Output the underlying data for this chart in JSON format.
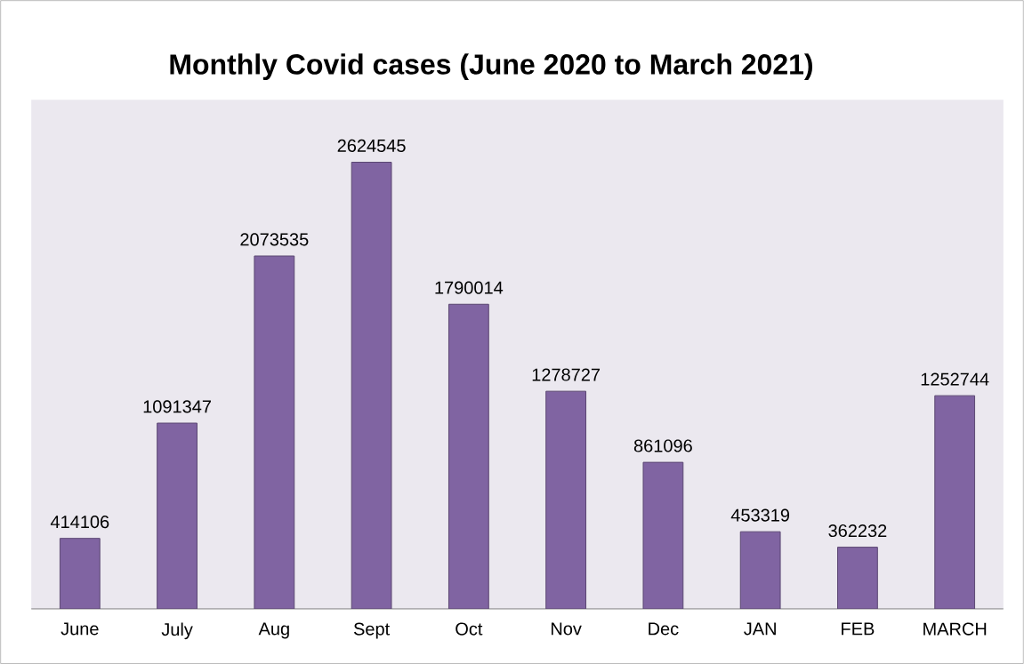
{
  "chart_data": {
    "type": "bar",
    "title": "Monthly Covid cases (June 2020 to March 2021)",
    "categories": [
      "June",
      "July",
      "Aug",
      "Sept",
      "Oct",
      "Nov",
      "Dec",
      "JAN",
      "FEB",
      "MARCH"
    ],
    "values": [
      414106,
      1091347,
      2073535,
      2624545,
      1790014,
      1278727,
      861096,
      453319,
      362232,
      1252744
    ],
    "color": "#8064a2",
    "data_labels": true,
    "tick_labels": "x"
  }
}
